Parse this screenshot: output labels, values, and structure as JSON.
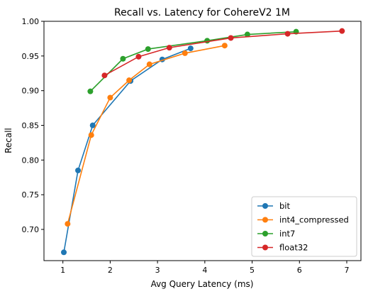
{
  "chart_data": {
    "type": "line",
    "title": "Recall vs. Latency for CohereV2 1M",
    "xlabel": "Avg Query Latency (ms)",
    "ylabel": "Recall",
    "xlim": [
      0.6,
      7.3
    ],
    "ylim": [
      0.655,
      1.0
    ],
    "xticks": [
      1,
      2,
      3,
      4,
      5,
      6,
      7
    ],
    "yticks": [
      0.7,
      0.75,
      0.8,
      0.85,
      0.9,
      0.95,
      1.0
    ],
    "legend_position": "lower-right",
    "grid": false,
    "series": [
      {
        "name": "bit",
        "color": "#1f77b4",
        "x": [
          1.02,
          1.32,
          1.63,
          2.43,
          3.1,
          3.7
        ],
        "y": [
          0.667,
          0.785,
          0.85,
          0.914,
          0.945,
          0.961
        ]
      },
      {
        "name": "int4_compressed",
        "color": "#ff7f0e",
        "x": [
          1.1,
          1.6,
          2.0,
          2.4,
          2.83,
          3.58,
          4.42
        ],
        "y": [
          0.708,
          0.836,
          0.89,
          0.915,
          0.938,
          0.954,
          0.965
        ]
      },
      {
        "name": "int7",
        "color": "#2ca02c",
        "x": [
          1.58,
          2.27,
          2.8,
          4.05,
          4.9,
          5.93
        ],
        "y": [
          0.899,
          0.946,
          0.96,
          0.972,
          0.981,
          0.985
        ]
      },
      {
        "name": "float32",
        "color": "#d62728",
        "x": [
          1.88,
          2.6,
          3.25,
          4.55,
          5.75,
          6.9
        ],
        "y": [
          0.922,
          0.949,
          0.962,
          0.976,
          0.982,
          0.986
        ]
      }
    ]
  }
}
